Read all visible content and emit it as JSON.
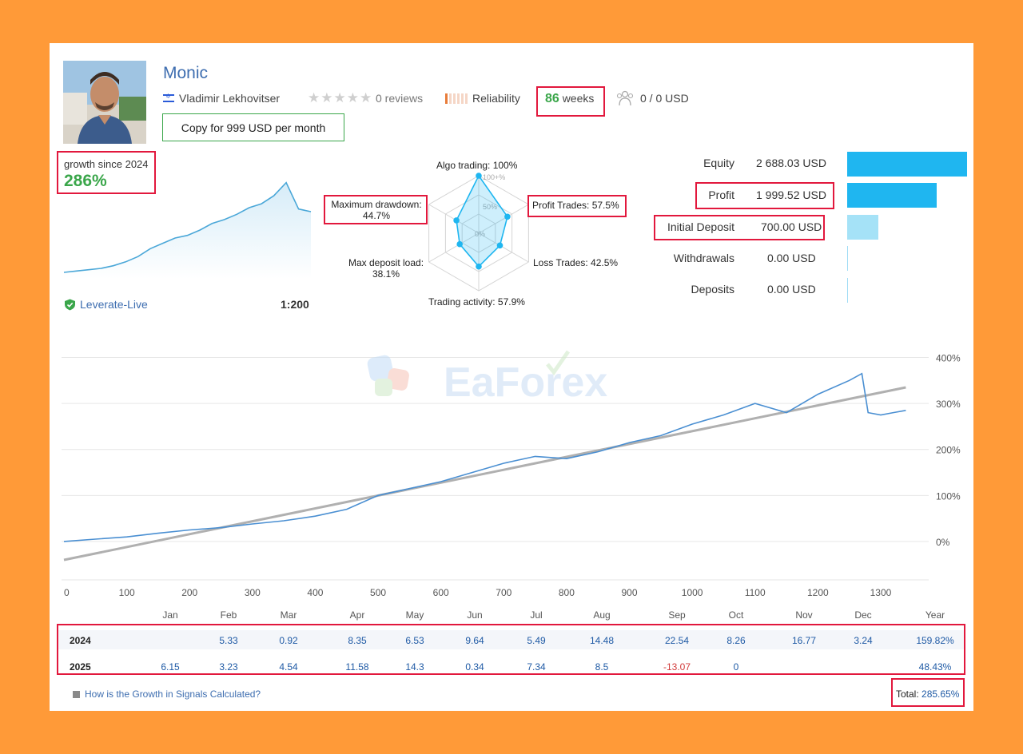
{
  "header": {
    "signal_name": "Monic",
    "author": "Vladimir Lekhovitser",
    "reviews": "0 reviews",
    "reliability": "Reliability",
    "weeks_number": "86",
    "weeks_label": "weeks",
    "subscribers": "0 / 0 USD",
    "copy_button": "Copy for 999 USD per month"
  },
  "summary": {
    "growth_label": "growth since 2024",
    "growth_value": "286%",
    "broker": "Leverate-Live",
    "leverage": "1:200"
  },
  "radar": {
    "labels": {
      "algo": "Algo trading: 100%",
      "profit_trades": "Profit Trades: 57.5%",
      "loss_trades": "Loss Trades: 42.5%",
      "activity": "Trading activity: 57.9%",
      "deposit_load_1": "Max deposit load:",
      "deposit_load_2": "38.1%",
      "drawdown_1": "Maximum drawdown:",
      "drawdown_2": "44.7%"
    },
    "ticks": [
      "100+%",
      "50%",
      "0%"
    ],
    "values": {
      "algo": 100,
      "profit_trades": 57.5,
      "loss_trades": 42.5,
      "activity": 57.9,
      "deposit_load": 38.1,
      "drawdown": 44.7
    }
  },
  "financials": [
    {
      "label": "Equity",
      "value": "2 688.03 USD",
      "amount": 2688.03
    },
    {
      "label": "Profit",
      "value": "1 999.52 USD",
      "amount": 1999.52
    },
    {
      "label": "Initial Deposit",
      "value": "700.00 USD",
      "amount": 700.0
    },
    {
      "label": "Withdrawals",
      "value": "0.00 USD",
      "amount": 0
    },
    {
      "label": "Deposits",
      "value": "0.00 USD",
      "amount": 0
    }
  ],
  "colors": {
    "accent_green": "#3aa64a",
    "link_blue": "#3e6eb0",
    "bar_blue": "#1fb6f0",
    "bar_light": "#a5e2f7",
    "highlight_red": "#e2183d"
  },
  "chart_data": [
    {
      "type": "line",
      "name": "growth-sparkline",
      "x": [
        0,
        10,
        20,
        30,
        40,
        50,
        60,
        70,
        80,
        90,
        100,
        110,
        120,
        130,
        140,
        150,
        160,
        170,
        180,
        190,
        200
      ],
      "y": [
        0,
        5,
        10,
        15,
        25,
        40,
        60,
        90,
        110,
        130,
        140,
        160,
        185,
        200,
        220,
        245,
        260,
        290,
        340,
        240,
        230
      ]
    },
    {
      "type": "line",
      "series": [
        {
          "name": "",
          "x": [
            0,
            50,
            100,
            150,
            200,
            250,
            300,
            350,
            400,
            450,
            500,
            550,
            600,
            650,
            700,
            750,
            800,
            850,
            900,
            950,
            1000,
            1050,
            1100,
            1150,
            1200,
            1250,
            1270,
            1280,
            1300,
            1320,
            1340
          ],
          "y": [
            0,
            5,
            10,
            18,
            25,
            30,
            38,
            45,
            55,
            70,
            100,
            115,
            130,
            150,
            170,
            185,
            180,
            195,
            215,
            230,
            255,
            275,
            300,
            280,
            320,
            350,
            365,
            280,
            275,
            280,
            285
          ]
        },
        {
          "name": "",
          "x": [
            0,
            1340
          ],
          "y": [
            -40,
            335
          ]
        }
      ],
      "xlabel": "",
      "ylabel": "",
      "xlim": [
        0,
        1370
      ],
      "ylim": [
        -80,
        420
      ],
      "x_ticks": [
        0,
        100,
        200,
        300,
        400,
        500,
        600,
        700,
        800,
        900,
        1000,
        1100,
        1200,
        1300
      ],
      "y_ticks": [
        "400%",
        "300%",
        "200%",
        "100%",
        "0%"
      ],
      "y_tick_values": [
        400,
        300,
        200,
        100,
        0
      ]
    }
  ],
  "watermark": "EaForex",
  "table": {
    "months": [
      "Jan",
      "Feb",
      "Mar",
      "Apr",
      "May",
      "Jun",
      "Jul",
      "Aug",
      "Sep",
      "Oct",
      "Nov",
      "Dec",
      "Year"
    ],
    "rows": [
      {
        "year": "2024",
        "values": [
          "",
          "5.33",
          "0.92",
          "8.35",
          "6.53",
          "9.64",
          "5.49",
          "14.48",
          "22.54",
          "8.26",
          "16.77",
          "3.24",
          "159.82%"
        ]
      },
      {
        "year": "2025",
        "values": [
          "6.15",
          "3.23",
          "4.54",
          "11.58",
          "14.3",
          "0.34",
          "7.34",
          "8.5",
          "-13.07",
          "0",
          "",
          "",
          "48.43%"
        ]
      }
    ]
  },
  "footer": {
    "howto_link": "How is the Growth in Signals Calculated?",
    "total_label": "Total:",
    "total_value": "285.65%"
  }
}
